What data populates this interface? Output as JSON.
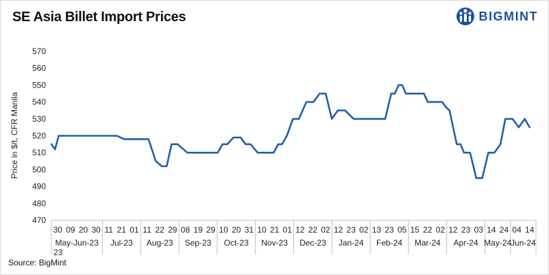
{
  "title": "SE Asia Billet Import Prices",
  "logo": {
    "text": "BIGMINT",
    "icon": "bigmint-people-icon",
    "color": "#1e4f9c"
  },
  "source": "Source: BigMint",
  "chart_data": {
    "type": "line",
    "title": "SE Asia Billet Import Prices",
    "ylabel": "Price in $/t, CFR Manila",
    "xlabel": "",
    "ylim": [
      470,
      570
    ],
    "yticks": [
      470,
      480,
      490,
      500,
      510,
      520,
      530,
      540,
      550,
      560,
      570
    ],
    "grid": false,
    "legend": "none",
    "line_color": "#1f5fa8",
    "day_ticks": [
      "30",
      "09",
      "20",
      "30",
      "11",
      "21",
      "01",
      "11",
      "22",
      "29",
      "08",
      "19",
      "29",
      "10",
      "20",
      "31",
      "10",
      "21",
      "01",
      "12",
      "22",
      "02",
      "12",
      "23",
      "02",
      "13",
      "23",
      "05",
      "15",
      "22",
      "02",
      "12",
      "23",
      "03",
      "14",
      "24",
      "04",
      "14"
    ],
    "months": [
      {
        "label": "May-Jun-23",
        "second": "23",
        "start": 0,
        "end": 4
      },
      {
        "label": "Jul-23",
        "start": 4,
        "end": 7
      },
      {
        "label": "Aug-23",
        "start": 7,
        "end": 10
      },
      {
        "label": "Sep-23",
        "start": 10,
        "end": 13
      },
      {
        "label": "Oct-23",
        "start": 13,
        "end": 16
      },
      {
        "label": "Nov-23",
        "start": 16,
        "end": 19
      },
      {
        "label": "Dec-23",
        "start": 19,
        "end": 22
      },
      {
        "label": "Jan-24",
        "start": 22,
        "end": 25
      },
      {
        "label": "Feb-24",
        "start": 25,
        "end": 28
      },
      {
        "label": "Mar-24",
        "start": 28,
        "end": 31
      },
      {
        "label": "Apr-24",
        "start": 31,
        "end": 34
      },
      {
        "label": "May-24",
        "start": 34,
        "end": 36
      },
      {
        "label": "Jun-24",
        "start": 36,
        "end": 38
      }
    ],
    "series": [
      {
        "x": [
          0,
          0.3,
          0.6,
          1.0,
          1.8,
          2.7,
          3.6,
          4.5,
          5.4,
          6.0,
          6.5,
          6.9,
          7.2,
          7.4,
          7.6,
          7.8,
          8.0,
          8.6,
          9.1,
          9.5,
          9.9,
          10.4,
          11.2,
          12.0,
          12.5,
          13.0,
          13.4,
          13.7,
          14.1,
          14.5,
          15.0,
          15.6,
          16.0,
          16.4,
          17.0,
          17.5,
          17.9,
          18.3,
          18.7,
          19.0,
          19.4,
          19.9,
          20.4,
          21.0,
          21.6,
          22.1,
          22.6,
          23.1,
          23.6,
          24.2,
          24.9,
          25.6,
          26.1,
          26.6,
          27.0,
          27.5,
          28.0,
          28.3,
          28.6,
          28.9,
          29.2,
          29.5,
          29.8,
          30.1,
          30.4,
          30.7,
          31.0,
          31.3,
          31.6,
          31.9,
          32.2,
          32.5,
          32.8,
          33.1,
          33.4,
          33.7,
          34.0,
          34.5,
          35.0,
          35.5,
          36.0,
          36.5,
          37.0,
          37.4,
          37.7,
          38.0,
          38.5,
          39.0,
          39.4
        ],
        "y": [
          515,
          512,
          520,
          520,
          520,
          520,
          520,
          520,
          520,
          518,
          518,
          518,
          518,
          518,
          518,
          518,
          518,
          505,
          502,
          502,
          515,
          515,
          510,
          510,
          510,
          510,
          510,
          510,
          515,
          515,
          519,
          519,
          515,
          515,
          510,
          510,
          510,
          510,
          515,
          515,
          520,
          530,
          530,
          540,
          540,
          545,
          545,
          530,
          535,
          535,
          530,
          530,
          530,
          530,
          530,
          530,
          545,
          545,
          550,
          550,
          545,
          545,
          545,
          545,
          545,
          545,
          540,
          540,
          540,
          540,
          540,
          537,
          535,
          525,
          515,
          515,
          510,
          510,
          495,
          495,
          510,
          510,
          515,
          530,
          530,
          530,
          525,
          530,
          525
        ]
      }
    ]
  }
}
